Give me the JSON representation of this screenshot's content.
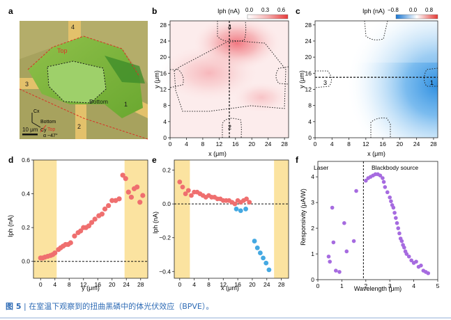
{
  "caption": {
    "figure": "图 5",
    "separator": "|",
    "text": "在室温下观察到的扭曲黑磷中的体光伏效应（BPVE）。"
  },
  "colors": {
    "red_points": "#ef6f6f",
    "blue_points": "#45a9e2",
    "purple_points": "#a66be0",
    "yellow_band": "#fbe3a0",
    "caption_blue": "#2e6bb5"
  },
  "panel_a": {
    "letter": "a",
    "labels": {
      "top": "Top",
      "bottom": "Bottom",
      "electrode_1": "1",
      "electrode_2": "2",
      "electrode_3": "3",
      "electrode_4": "4",
      "cx": "Cx",
      "cy": "Cy",
      "axis_bottom": "Bottom",
      "axis_top": "Top",
      "angle": "α ~47°",
      "scale_bar": "10 μm"
    }
  },
  "chart_data": [
    {
      "panel": "b",
      "type": "heatmap",
      "title": "",
      "colorbar_label": "Iph (nA)",
      "colorbar_ticks": [
        "0.0",
        "0.3",
        "0.6"
      ],
      "colorbar_range": [
        0,
        0.6
      ],
      "xlabel": "x (μm)",
      "ylabel": "y (μm)",
      "xlim": [
        0,
        29
      ],
      "ylim": [
        0,
        29
      ],
      "xticks": [
        0,
        4,
        8,
        12,
        16,
        20,
        24,
        28
      ],
      "yticks": [
        0,
        4,
        8,
        12,
        16,
        20,
        24,
        28
      ],
      "electrode_labels": [
        "4",
        "2"
      ],
      "crosshair_x": 14.5,
      "hotspot": {
        "x": 17,
        "y": 23,
        "value": 0.6
      }
    },
    {
      "panel": "c",
      "type": "heatmap",
      "colorbar_label": "Iph (nA)",
      "colorbar_ticks": [
        "−0.8",
        "0.0",
        "0.8"
      ],
      "colorbar_range": [
        -0.8,
        0.8
      ],
      "xlabel": "x (μm)",
      "ylabel": "y (μm)",
      "xlim": [
        0,
        29
      ],
      "ylim": [
        0,
        29
      ],
      "xticks": [
        0,
        4,
        8,
        12,
        16,
        20,
        24,
        28
      ],
      "yticks": [
        0,
        4,
        8,
        12,
        16,
        20,
        24,
        28
      ],
      "electrode_labels": [
        "3",
        "1"
      ],
      "crosshair_y": 15
    },
    {
      "panel": "d",
      "type": "scatter",
      "xlabel": "y (μm)",
      "ylabel": "Iph (nA)",
      "xlim": [
        -2,
        30
      ],
      "ylim": [
        -0.1,
        0.6
      ],
      "xticks": [
        0,
        4,
        8,
        12,
        16,
        20,
        24,
        28
      ],
      "yticks": [
        0.0,
        0.2,
        0.4,
        0.6
      ],
      "ytick_labels": [
        "0.0",
        "0.2",
        "0.4",
        "0.6"
      ],
      "bands": [
        [
          -2,
          4.5
        ],
        [
          23.5,
          30
        ]
      ],
      "zero_line": 0,
      "series": [
        {
          "name": "y scan",
          "color": "red",
          "x": [
            0,
            0.6,
            1.2,
            2,
            2.8,
            3.4,
            4,
            5,
            5.6,
            6.3,
            7,
            7.7,
            8.4,
            9.5,
            10.5,
            11.2,
            12,
            12.7,
            13.5,
            14.3,
            15.2,
            16.3,
            17.2,
            18,
            19,
            20,
            21,
            22,
            23,
            23.8,
            24.6,
            25.4,
            26.2,
            27,
            27.8,
            28.6
          ],
          "y": [
            0.02,
            0.02,
            0.025,
            0.03,
            0.035,
            0.04,
            0.05,
            0.07,
            0.08,
            0.09,
            0.1,
            0.1,
            0.11,
            0.15,
            0.17,
            0.18,
            0.2,
            0.2,
            0.21,
            0.23,
            0.25,
            0.27,
            0.28,
            0.31,
            0.33,
            0.36,
            0.36,
            0.37,
            0.51,
            0.49,
            0.41,
            0.38,
            0.43,
            0.44,
            0.35,
            0.39
          ]
        }
      ]
    },
    {
      "panel": "e",
      "type": "scatter",
      "xlabel": "x (μm)",
      "ylabel": "Iph (nA)",
      "xlim": [
        -1.5,
        30
      ],
      "ylim": [
        -0.44,
        0.26
      ],
      "xticks": [
        0,
        4,
        8,
        12,
        16,
        20,
        24,
        28
      ],
      "yticks": [
        0.2,
        0.0,
        -0.2,
        -0.4
      ],
      "ytick_labels": [
        "0.2",
        "0.0",
        "−0.2",
        "−0.4"
      ],
      "bands": [
        [
          -1.5,
          2.8
        ],
        [
          26,
          30
        ]
      ],
      "zero_line": 0,
      "series": [
        {
          "name": "positive",
          "color": "red",
          "x": [
            0,
            0.8,
            1.6,
            2.4,
            3.2,
            4,
            4.8,
            5.6,
            6.4,
            7.2,
            8,
            8.8,
            9.6,
            10.4,
            11.2,
            12,
            12.8,
            13.6,
            14.4,
            15.2,
            16,
            16.8,
            17.6,
            18.4,
            19.2
          ],
          "y": [
            0.13,
            0.1,
            0.06,
            0.08,
            0.05,
            0.07,
            0.07,
            0.06,
            0.05,
            0.04,
            0.05,
            0.04,
            0.04,
            0.03,
            0.03,
            0.02,
            0.02,
            0.02,
            0.01,
            0.0,
            0.02,
            0.01,
            0.02,
            0.03,
            0.01
          ]
        },
        {
          "name": "negative",
          "color": "blue",
          "x": [
            15.6,
            16.8,
            18.2,
            20.6,
            21.4,
            22.2,
            23,
            23.8,
            24.6
          ],
          "y": [
            -0.03,
            -0.04,
            -0.03,
            -0.22,
            -0.26,
            -0.29,
            -0.32,
            -0.35,
            -0.39
          ]
        }
      ]
    },
    {
      "panel": "f",
      "type": "scatter",
      "xlabel": "Wavelength (μm)",
      "ylabel": "Responsivity (μA/W)",
      "xlim": [
        0,
        5
      ],
      "ylim": [
        0,
        4.6
      ],
      "xticks": [
        0,
        1,
        2,
        3,
        4,
        5
      ],
      "yticks": [
        0,
        1,
        2,
        3,
        4
      ],
      "divider_x": 1.9,
      "region_labels": [
        "Laser",
        "Blackbody source"
      ],
      "series": [
        {
          "name": "Laser",
          "color": "purple",
          "x": [
            0.45,
            0.5,
            0.6,
            0.65,
            0.75,
            0.9,
            1.1,
            1.2,
            1.5,
            1.6
          ],
          "y": [
            0.9,
            0.7,
            2.8,
            1.45,
            0.35,
            0.3,
            2.2,
            1.1,
            1.5,
            3.45
          ]
        },
        {
          "name": "Blackbody source",
          "color": "purple",
          "x": [
            2.0,
            2.1,
            2.2,
            2.3,
            2.4,
            2.5,
            2.6,
            2.7,
            2.75,
            2.8,
            2.9,
            3.0,
            3.05,
            3.1,
            3.15,
            3.2,
            3.25,
            3.3,
            3.35,
            3.4,
            3.45,
            3.5,
            3.55,
            3.6,
            3.65,
            3.7,
            3.8,
            3.9,
            4.0,
            4.1,
            4.2,
            4.3,
            4.4,
            4.5,
            4.6
          ],
          "y": [
            3.85,
            3.95,
            4.0,
            4.05,
            4.1,
            4.1,
            4.05,
            3.95,
            3.8,
            3.6,
            3.4,
            3.2,
            3.05,
            2.9,
            2.8,
            2.6,
            2.4,
            2.2,
            2.0,
            1.8,
            1.6,
            1.5,
            1.35,
            1.25,
            1.1,
            1.0,
            0.9,
            0.75,
            0.65,
            0.7,
            0.5,
            0.55,
            0.35,
            0.3,
            0.25
          ]
        }
      ]
    }
  ]
}
